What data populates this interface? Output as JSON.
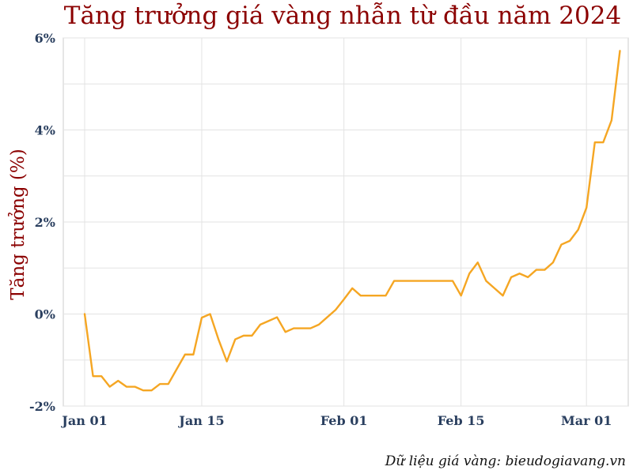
{
  "chart_data": {
    "type": "line",
    "title": "Tăng trưởng giá vàng nhẫn từ đầu năm 2024",
    "xlabel": "",
    "ylabel": "Tăng trưởng (%)",
    "source_note": "Dữ liệu giá vàng: bieudogiavang.vn",
    "xlim": [
      0,
      65
    ],
    "ylim": [
      -2,
      6
    ],
    "grid": true,
    "x_ticks": [
      {
        "day": 0,
        "label": "Jan 01"
      },
      {
        "day": 14,
        "label": "Jan 15"
      },
      {
        "day": 31,
        "label": "Feb 01"
      },
      {
        "day": 45,
        "label": "Feb 15"
      },
      {
        "day": 60,
        "label": "Mar 01"
      }
    ],
    "y_ticks": [
      {
        "value": -2,
        "label": "-2%"
      },
      {
        "value": 0,
        "label": "0%"
      },
      {
        "value": 2,
        "label": "2%"
      },
      {
        "value": 4,
        "label": "4%"
      },
      {
        "value": 6,
        "label": "6%"
      }
    ],
    "series": [
      {
        "name": "Vàng nhẫn",
        "color": "#f5a623",
        "x": [
          0,
          1,
          2,
          3,
          4,
          5,
          6,
          7,
          8,
          9,
          10,
          11,
          12,
          13,
          14,
          15,
          16,
          17,
          18,
          19,
          20,
          21,
          22,
          23,
          24,
          25,
          26,
          27,
          28,
          29,
          30,
          31,
          32,
          33,
          34,
          35,
          36,
          37,
          38,
          39,
          40,
          41,
          42,
          43,
          44,
          45,
          46,
          47,
          48,
          49,
          50,
          51,
          52,
          53,
          54,
          55,
          56,
          57,
          58,
          59,
          60,
          61,
          62,
          63,
          64
        ],
        "values": [
          0.0,
          -1.35,
          -1.35,
          -1.58,
          -1.45,
          -1.58,
          -1.58,
          -1.66,
          -1.66,
          -1.52,
          -1.52,
          -1.2,
          -0.88,
          -0.88,
          -0.08,
          0.0,
          -0.55,
          -1.03,
          -0.55,
          -0.47,
          -0.47,
          -0.23,
          -0.15,
          -0.07,
          -0.39,
          -0.31,
          -0.31,
          -0.31,
          -0.23,
          -0.07,
          0.09,
          0.32,
          0.56,
          0.4,
          0.4,
          0.4,
          0.4,
          0.72,
          0.72,
          0.72,
          0.72,
          0.72,
          0.72,
          0.72,
          0.72,
          0.4,
          0.88,
          1.12,
          0.72,
          0.56,
          0.4,
          0.8,
          0.88,
          0.8,
          0.96,
          0.96,
          1.12,
          1.51,
          1.59,
          1.83,
          2.31,
          3.73,
          3.73,
          4.21,
          5.72
        ]
      }
    ]
  }
}
